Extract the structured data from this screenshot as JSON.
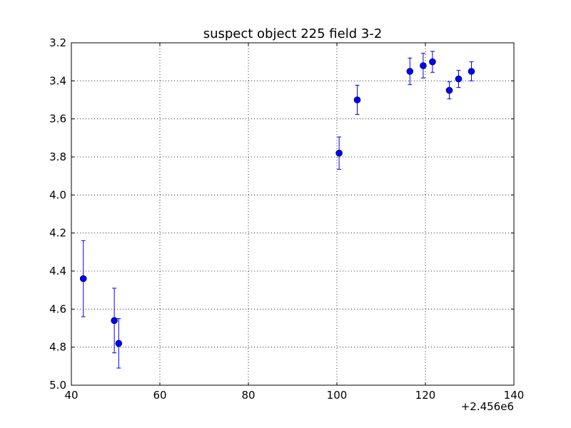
{
  "chart_data": {
    "type": "scatter",
    "title": "suspect object 225 field 3-2",
    "xlabel": "",
    "ylabel": "",
    "x_offset_label": "+2.456e6",
    "xlim": [
      40,
      140
    ],
    "ylim": [
      5.0,
      3.2
    ],
    "y_inverted": true,
    "grid": true,
    "x_ticks": [
      "40",
      "60",
      "80",
      "100",
      "120",
      "140"
    ],
    "y_ticks": [
      "3.2",
      "3.4",
      "3.6",
      "3.8",
      "4.0",
      "4.2",
      "4.4",
      "4.6",
      "4.8",
      "5.0"
    ],
    "marker_color": "#0000ff",
    "points": [
      {
        "x": 42.7,
        "y": 4.44,
        "err": 0.2
      },
      {
        "x": 49.7,
        "y": 4.66,
        "err": 0.17
      },
      {
        "x": 50.7,
        "y": 4.78,
        "err": 0.13
      },
      {
        "x": 100.5,
        "y": 3.78,
        "err": 0.085
      },
      {
        "x": 104.6,
        "y": 3.5,
        "err": 0.077
      },
      {
        "x": 116.5,
        "y": 3.35,
        "err": 0.07
      },
      {
        "x": 119.5,
        "y": 3.32,
        "err": 0.065
      },
      {
        "x": 121.6,
        "y": 3.3,
        "err": 0.055
      },
      {
        "x": 125.4,
        "y": 3.45,
        "err": 0.045
      },
      {
        "x": 127.5,
        "y": 3.39,
        "err": 0.045
      },
      {
        "x": 130.4,
        "y": 3.35,
        "err": 0.05
      }
    ]
  }
}
